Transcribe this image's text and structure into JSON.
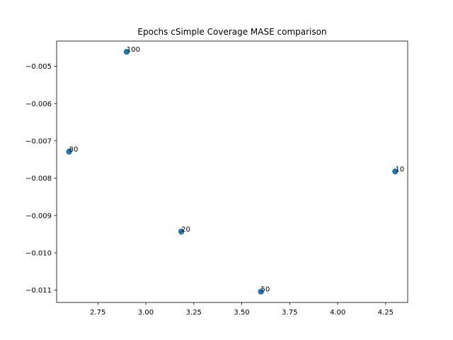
{
  "chart_data": {
    "type": "scatter",
    "title": "Epochs cSimple Coverage MASE comparison",
    "xlabel": "",
    "ylabel": "",
    "xlim": [
      2.535,
      4.365
    ],
    "ylim": [
      -0.01133,
      -0.004327
    ],
    "x_ticks": [
      2.75,
      3.0,
      3.25,
      3.5,
      3.75,
      4.0,
      4.25
    ],
    "x_tick_labels": [
      "2.75",
      "3.00",
      "3.25",
      "3.50",
      "3.75",
      "4.00",
      "4.25"
    ],
    "y_ticks": [
      -0.005,
      -0.006,
      -0.007,
      -0.008,
      -0.009,
      -0.01,
      -0.011
    ],
    "y_tick_labels": [
      "−0.005",
      "−0.006",
      "−0.007",
      "−0.008",
      "−0.009",
      "−0.010",
      "−0.011"
    ],
    "grid": false,
    "point_color": "#1f77b4",
    "points": [
      {
        "label": "100",
        "x": 2.9,
        "y": -0.004615
      },
      {
        "label": "80",
        "x": 2.6,
        "y": -0.00729
      },
      {
        "label": "10",
        "x": 4.3,
        "y": -0.00782
      },
      {
        "label": "20",
        "x": 3.185,
        "y": -0.00943
      },
      {
        "label": "50",
        "x": 3.6,
        "y": -0.01104
      }
    ]
  }
}
